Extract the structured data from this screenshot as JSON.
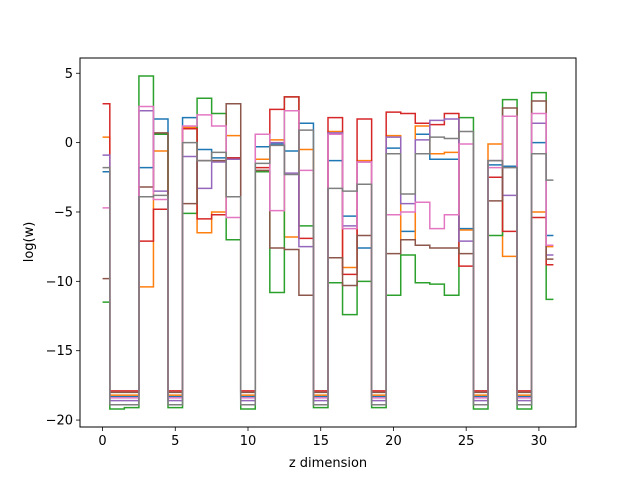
{
  "chart_data": {
    "type": "line",
    "drawstyle": "steps-mid",
    "title": "",
    "xlabel": "z dimension",
    "ylabel": "log(w)",
    "xlim": [
      -1.55,
      32.55
    ],
    "ylim": [
      -20.5,
      6.1
    ],
    "xticks": [
      0,
      5,
      10,
      15,
      20,
      25,
      30
    ],
    "yticks": [
      5,
      0,
      -5,
      -10,
      -15,
      -20
    ],
    "grid": false,
    "legend": "none",
    "x": [
      0,
      1,
      2,
      3,
      4,
      5,
      6,
      7,
      8,
      9,
      10,
      11,
      12,
      13,
      14,
      15,
      16,
      17,
      18,
      19,
      20,
      21,
      22,
      23,
      24,
      25,
      26,
      27,
      28,
      29,
      30,
      31
    ],
    "series": [
      {
        "color": "#1f77b4",
        "values": [
          -2.1,
          -18.3,
          -18.3,
          -1.8,
          1.7,
          -18.3,
          1.8,
          -0.5,
          -1.1,
          -1.1,
          -18.3,
          -0.3,
          -0.1,
          -0.6,
          1.4,
          -18.3,
          -1.3,
          -5.3,
          -7.6,
          -18.3,
          -0.4,
          -6.4,
          0.6,
          -1.2,
          -1.2,
          -6.2,
          -18.3,
          -1.6,
          -1.7,
          -18.3,
          0.0,
          -6.7
        ]
      },
      {
        "color": "#ff7f0e",
        "values": [
          0.4,
          -18.2,
          -18.2,
          -10.4,
          -0.6,
          -18.2,
          1.1,
          -6.5,
          -5.0,
          0.5,
          -18.2,
          -1.2,
          0.2,
          -6.8,
          -0.5,
          -18.2,
          0.8,
          -9.0,
          -1.3,
          -18.2,
          0.5,
          -7.0,
          1.2,
          -0.8,
          -0.7,
          -6.3,
          -18.2,
          -0.1,
          -8.2,
          -18.2,
          -5.0,
          -7.5
        ]
      },
      {
        "color": "#2ca02c",
        "values": [
          -11.5,
          -19.2,
          -19.1,
          4.8,
          0.6,
          -19.1,
          -5.1,
          3.2,
          2.1,
          -7.0,
          -19.2,
          -2.1,
          -10.8,
          3.3,
          -6.0,
          -19.1,
          -10.1,
          -12.4,
          -10.0,
          -19.1,
          -11.0,
          -8.1,
          -10.1,
          -10.2,
          -11.0,
          1.8,
          -19.2,
          -6.7,
          3.1,
          -19.2,
          3.6,
          -11.3
        ]
      },
      {
        "color": "#d62728",
        "values": [
          2.8,
          -17.9,
          -17.9,
          -7.1,
          -4.8,
          -17.9,
          1.0,
          -5.5,
          -5.2,
          -1.1,
          -17.9,
          -1.8,
          2.4,
          3.3,
          -6.9,
          -17.9,
          1.8,
          -9.5,
          1.7,
          -17.9,
          2.2,
          2.1,
          1.4,
          1.3,
          2.1,
          -8.9,
          -17.9,
          -2.5,
          -6.4,
          -17.9,
          -5.4,
          -8.8
        ]
      },
      {
        "color": "#9467bd",
        "values": [
          -0.9,
          -18.6,
          -18.6,
          2.3,
          -3.5,
          -18.6,
          -1.0,
          -3.3,
          -1.4,
          -1.2,
          -18.6,
          0.6,
          0.0,
          -2.2,
          -7.5,
          -18.6,
          0.7,
          -6.0,
          -1.4,
          -18.6,
          0.4,
          -4.4,
          0.2,
          1.6,
          1.7,
          -7.1,
          -18.6,
          -1.3,
          -3.8,
          -18.6,
          1.4,
          -8.1
        ]
      },
      {
        "color": "#8c564b",
        "values": [
          -9.8,
          -18.0,
          -18.0,
          -3.2,
          0.7,
          -18.0,
          -4.4,
          -1.3,
          -1.3,
          2.8,
          -18.0,
          -2.0,
          -7.6,
          -7.7,
          -11.0,
          -18.0,
          -8.3,
          -10.3,
          -6.7,
          -18.0,
          -8.0,
          -7.0,
          -7.4,
          -7.6,
          -7.6,
          -8.0,
          -18.0,
          -4.2,
          2.5,
          -18.0,
          3.0,
          -8.4
        ]
      },
      {
        "color": "#e377c2",
        "values": [
          -4.7,
          -18.4,
          -18.4,
          2.6,
          -4.1,
          -18.4,
          1.2,
          2.0,
          1.2,
          -5.4,
          -18.4,
          0.6,
          -4.9,
          2.3,
          -2.0,
          -18.4,
          0.6,
          -6.2,
          -1.4,
          -18.4,
          -5.2,
          -5.0,
          -4.3,
          -6.2,
          -5.2,
          -0.1,
          -18.4,
          -1.8,
          1.9,
          -18.4,
          2.1,
          -7.4
        ]
      },
      {
        "color": "#7f7f7f",
        "values": [
          -1.8,
          -18.9,
          -18.9,
          -3.9,
          -3.8,
          -18.9,
          0.0,
          -1.3,
          -0.7,
          -3.9,
          -18.9,
          -1.5,
          -0.2,
          -2.3,
          0.9,
          -18.9,
          -3.3,
          -3.5,
          -3.0,
          -18.9,
          -0.8,
          -3.7,
          -0.8,
          0.4,
          0.3,
          0.8,
          -18.9,
          -1.3,
          -1.8,
          -18.9,
          -0.8,
          -2.7
        ]
      }
    ]
  }
}
